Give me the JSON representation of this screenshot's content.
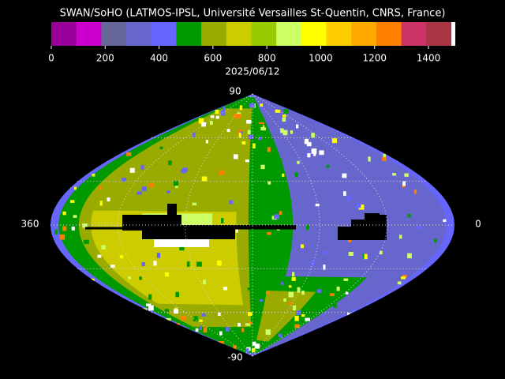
{
  "header": {
    "title": "SWAN/SoHO (LATMOS-IPSL, Université Versailles St-Quentin, CNRS, France)"
  },
  "colorbar": {
    "colors": [
      "#990099",
      "#cc00cc",
      "#666699",
      "#6666cc",
      "#6666ff",
      "#009900",
      "#99aa00",
      "#cccc00",
      "#99cc00",
      "#ccff66",
      "#ffff00",
      "#ffcc00",
      "#ffaa00",
      "#ff8000",
      "#cc3366",
      "#aa3344",
      "#ffffff"
    ],
    "ticks": [
      "0",
      "200",
      "400",
      "600",
      "800",
      "1000",
      "1200",
      "1400"
    ]
  },
  "date": "2025/06/12",
  "map": {
    "top_label": "90",
    "bottom_label": "-90",
    "left_label": "360",
    "right_label": "0"
  }
}
